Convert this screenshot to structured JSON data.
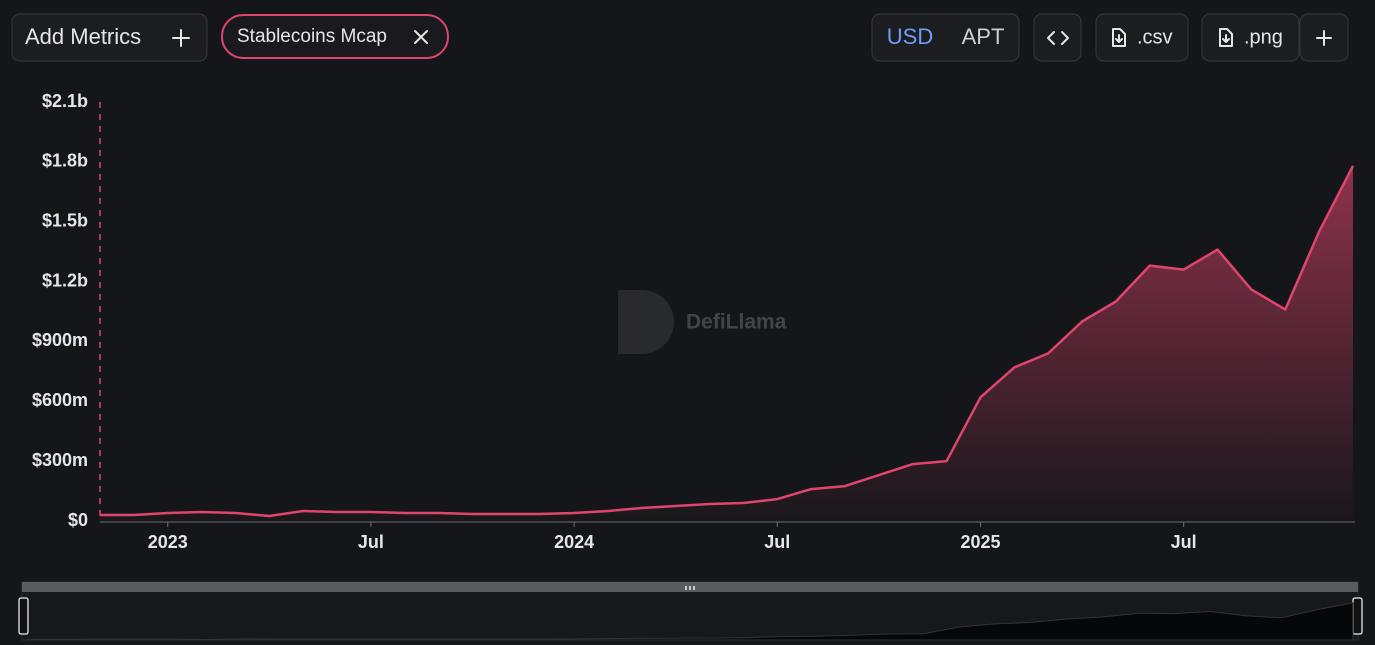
{
  "toolbar": {
    "add_metrics": "Add Metrics",
    "currencies": [
      "USD",
      "APT"
    ],
    "downloads": [
      ".csv",
      ".png"
    ]
  },
  "watermark": "DefiLlama",
  "chart_data": {
    "type": "area",
    "x": [
      "2022-11",
      "2022-12",
      "2023-01",
      "2023-02",
      "2023-03",
      "2023-04",
      "2023-05",
      "2023-06",
      "2023-07",
      "2023-08",
      "2023-09",
      "2023-10",
      "2023-11",
      "2023-12",
      "2024-01",
      "2024-02",
      "2024-03",
      "2024-04",
      "2024-05",
      "2024-06",
      "2024-07",
      "2024-08",
      "2024-09",
      "2024-10",
      "2024-11",
      "2024-12",
      "2025-01",
      "2025-02",
      "2025-03",
      "2025-04",
      "2025-05",
      "2025-06",
      "2025-07",
      "2025-08",
      "2025-09",
      "2025-10",
      "2025-11",
      "2025-12"
    ],
    "series": [
      {
        "name": "Stablecoins Mcap",
        "color": "#e0456d",
        "values": [
          30000000,
          30000000,
          40000000,
          45000000,
          40000000,
          25000000,
          50000000,
          45000000,
          45000000,
          40000000,
          40000000,
          35000000,
          35000000,
          35000000,
          40000000,
          50000000,
          65000000,
          75000000,
          85000000,
          90000000,
          110000000,
          160000000,
          175000000,
          230000000,
          285000000,
          300000000,
          620000000,
          770000000,
          840000000,
          1000000000,
          1100000000,
          1280000000,
          1260000000,
          1360000000,
          1160000000,
          1060000000,
          1450000000,
          1780000000
        ]
      }
    ],
    "xlim": [
      "2022-11",
      "2025-12"
    ],
    "xticks": [
      {
        "value": "2023-01",
        "label": "2023"
      },
      {
        "value": "2023-07",
        "label": "Jul"
      },
      {
        "value": "2024-01",
        "label": "2024"
      },
      {
        "value": "2024-07",
        "label": "Jul"
      },
      {
        "value": "2025-01",
        "label": "2025"
      },
      {
        "value": "2025-07",
        "label": "Jul"
      }
    ],
    "ylim": [
      0,
      2100000000
    ],
    "yticks": [
      {
        "value": 0,
        "label": "$0"
      },
      {
        "value": 300000000,
        "label": "$300m"
      },
      {
        "value": 600000000,
        "label": "$600m"
      },
      {
        "value": 900000000,
        "label": "$900m"
      },
      {
        "value": 1200000000,
        "label": "$1.2b"
      },
      {
        "value": 1500000000,
        "label": "$1.5b"
      },
      {
        "value": 1800000000,
        "label": "$1.8b"
      },
      {
        "value": 2100000000,
        "label": "$2.1b"
      }
    ],
    "grid": false
  }
}
